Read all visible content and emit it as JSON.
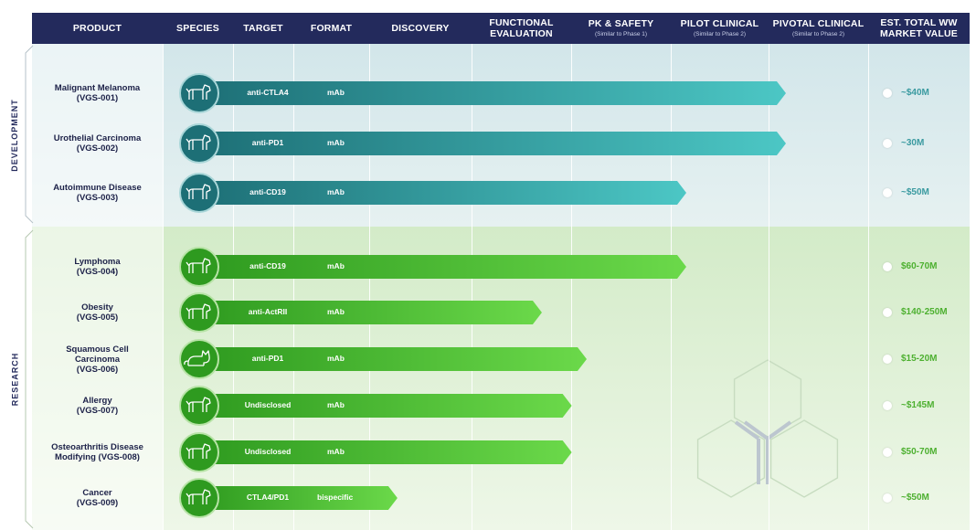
{
  "header": {
    "columns": [
      {
        "label": "PRODUCT",
        "sub": ""
      },
      {
        "label": "SPECIES",
        "sub": ""
      },
      {
        "label": "TARGET",
        "sub": ""
      },
      {
        "label": "FORMAT",
        "sub": ""
      },
      {
        "label": "DISCOVERY",
        "sub": ""
      },
      {
        "label": "FUNCTIONAL EVALUATION",
        "sub": ""
      },
      {
        "label": "PK & SAFETY",
        "sub": "(Similar to Phase 1)"
      },
      {
        "label": "PILOT CLINICAL",
        "sub": "(Similar to Phase 2)"
      },
      {
        "label": "PIVOTAL CLINICAL",
        "sub": "(Similar to Phase 2)"
      },
      {
        "label": "EST. TOTAL WW MARKET VALUE",
        "sub": ""
      }
    ]
  },
  "sections": [
    {
      "label": "DEVELOPMENT",
      "color": "#2f9aa3"
    },
    {
      "label": "RESEARCH",
      "color": "#3fae2a"
    }
  ],
  "colors": {
    "header_bg": "#232a5c",
    "dev_dark": "#1d6f76",
    "dev_light": "#4cc7c5",
    "res_dark": "#2e9a1f",
    "res_light": "#6bd94a",
    "market_dev": "#3a9aa0",
    "market_res": "#4db030"
  },
  "chart_data": {
    "type": "bar",
    "orientation": "horizontal",
    "title": "",
    "stages": [
      "DISCOVERY",
      "FUNCTIONAL EVALUATION",
      "PK & SAFETY",
      "PILOT CLINICAL",
      "PIVOTAL CLINICAL"
    ],
    "rows": [
      {
        "product": "Malignant Melanoma\n(VGS-001)",
        "species": "dog-icon",
        "target": "anti-CTLA4",
        "format": "mAb",
        "progress": 4.0,
        "market": "~$40M",
        "section": "DEVELOPMENT"
      },
      {
        "product": "Urothelial Carcinoma\n(VGS-002)",
        "species": "dog-icon",
        "target": "anti-PD1",
        "format": "mAb",
        "progress": 4.0,
        "market": "~30M",
        "section": "DEVELOPMENT"
      },
      {
        "product": "Autoimmune Disease\n(VGS-003)",
        "species": "dog-icon",
        "target": "anti-CD19",
        "format": "mAb",
        "progress": 3.0,
        "market": "~$50M",
        "section": "DEVELOPMENT"
      },
      {
        "product": "Lymphoma\n(VGS-004)",
        "species": "dog-icon",
        "target": "anti-CD19",
        "format": "mAb",
        "progress": 3.0,
        "market": "$60-70M",
        "section": "RESEARCH"
      },
      {
        "product": "Obesity\n(VGS-005)",
        "species": "dog-icon",
        "target": "anti-ActRII",
        "format": "mAb",
        "progress": 1.55,
        "market": "$140-250M",
        "section": "RESEARCH"
      },
      {
        "product": "Squamous Cell\nCarcinoma\n(VGS-006)",
        "species": "cat-icon",
        "target": "anti-PD1",
        "format": "mAb",
        "progress": 2.0,
        "market": "$15-20M",
        "section": "RESEARCH"
      },
      {
        "product": "Allergy\n(VGS-007)",
        "species": "dog-icon",
        "target": "Undisclosed",
        "format": "mAb",
        "progress": 1.85,
        "market": "~$145M",
        "section": "RESEARCH"
      },
      {
        "product": "Osteoarthritis Disease\nModifying (VGS-008)",
        "species": "dog-icon",
        "target": "Undisclosed",
        "format": "mAb",
        "progress": 1.85,
        "market": "$50-70M",
        "section": "RESEARCH"
      },
      {
        "product": "Cancer\n(VGS-009)",
        "species": "dog-icon",
        "target": "CTLA4/PD1",
        "format": "bispecific",
        "progress": 0.1,
        "market": "~$50M",
        "section": "RESEARCH"
      }
    ]
  }
}
